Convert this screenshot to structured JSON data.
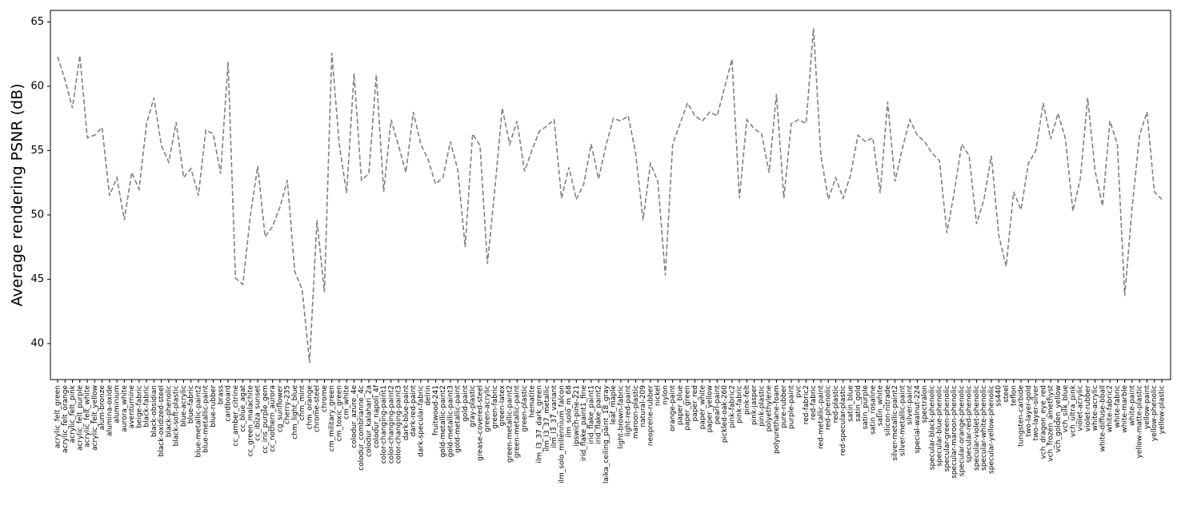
{
  "chart_data": {
    "type": "line",
    "y_label": "Average rendering PSNR (dB)",
    "categories": [
      "acrylic_felt_green",
      "acrylic_felt_orange",
      "acrylic_felt_pink",
      "acrylic_felt_purple",
      "acrylic_felt_white",
      "acrylic_felt_yellow",
      "alum-bronze",
      "alumina-oxide",
      "aluminium",
      "aurora_white",
      "aventurnine",
      "beige-fabric",
      "black-fabric",
      "black-obsidian",
      "black-oxidized-steel",
      "black-phenolic",
      "black-soft-plastic",
      "blue-acrylic",
      "blue-fabric",
      "blue-metallic-paint2",
      "blue-metallic-paint",
      "blue-rubber",
      "brass",
      "cardboard",
      "cc_amber_citrine",
      "cc_blue_agat",
      "cc_green_malachite",
      "cc_ibiza_sunset",
      "cc_iris_purple_gem",
      "cc_nothern_aurora",
      "cg_sunflower",
      "cherry-235",
      "chm_light_blue",
      "chm_mint",
      "chm_orange",
      "chrome-steel",
      "chrome",
      "cm_military_green",
      "cm_toxic_green",
      "cm_white",
      "colodur_azure_4e",
      "colodur_combrianne_4c",
      "colodur_kalahari_2a",
      "colodur_napoli_4f",
      "color-changing-paint1",
      "color-changing-paint2",
      "color-changing-paint3",
      "dark-blue-paint",
      "dark-red-paint",
      "dark-specular-fabric",
      "delrin",
      "fruitwood-241",
      "gold-metallic-paint2",
      "gold-metallic-paint3",
      "gold-metallic-paint",
      "gold-paint",
      "gray-plastic",
      "grease-covered-steel",
      "green-acrylic",
      "green-fabric",
      "green-latex",
      "green-metallic-paint2",
      "green-metallic-paint",
      "green-plastic",
      "hematite",
      "ilm_l3_37_dark_green",
      "ilm_l3_37_metallic",
      "ilm_l3_37_variant",
      "ilm_solo_millennium_falcon",
      "ilm_solo_m_68",
      "ipswich-pine-221",
      "irid_flake_paint1_fine",
      "irid_flake_paint1",
      "irid_flake_paint2",
      "laika_ceiling_paint_18_gray",
      "leaf_maple",
      "light-brown-fabric",
      "light-red-paint",
      "maroon-plastic",
      "natural-209",
      "neoprene-rubber",
      "nickel",
      "nylon",
      "orange-paint",
      "paper_blue",
      "paper_green",
      "paper_red",
      "paper_white",
      "paper_yellow",
      "pearl-paint",
      "pickled-oak-260",
      "pink-fabric2",
      "pink-fabric",
      "pink-felt",
      "pink-jasper",
      "pink-plastic",
      "polyethylene",
      "polyurethane-foam",
      "pure-rubber",
      "purple-paint",
      "pvc",
      "red-fabric2",
      "red-fabric",
      "red-metallic-paint",
      "red-phenolic",
      "red-plastic",
      "red-specular-plastic",
      "satin_blue",
      "satin_gold",
      "satin_purple",
      "satin_rosaline",
      "satin_white",
      "silicon-nitrade",
      "silver-metallic-paint2",
      "silver-metallic-paint",
      "silver-paint",
      "special-walnut-224",
      "spectralon",
      "specular-black-phenolic",
      "specular-blue-phenolic",
      "specular-green-phenolic",
      "specular-maroon-phenolic",
      "specular-orange-phenolic",
      "specular-red-phenolic",
      "specular-violet-phenolic",
      "specular-white-phenolic",
      "specular-yellow-phenolic",
      "ss440",
      "steel",
      "teflon",
      "tungsten-carbide",
      "two-layer-gold",
      "two-layer-silver",
      "vch_dragon_eye_red",
      "vch_frozen_amethyst",
      "vch_golden_yellow",
      "vch_silk_blue",
      "vch_ultra_pink",
      "violet-acrylic",
      "violet-rubber",
      "white-acrylic",
      "white-diffuse-bball",
      "white-fabric2",
      "white-fabric",
      "white-marble",
      "white-paint",
      "yellow-matte-plastic",
      "yellow-paint",
      "yellow-phenolic",
      "yellow-plastic"
    ],
    "values": [
      62.3,
      60.5,
      58.3,
      62.4,
      56.0,
      56.2,
      56.8,
      51.5,
      52.9,
      49.6,
      53.3,
      52.0,
      57.1,
      59.1,
      55.4,
      54.1,
      57.2,
      52.9,
      53.6,
      51.5,
      56.6,
      56.3,
      53.2,
      61.9,
      45.1,
      44.6,
      49.9,
      53.8,
      48.3,
      49.1,
      50.6,
      52.7,
      45.6,
      44.2,
      38.5,
      49.6,
      44.0,
      62.6,
      55.5,
      51.7,
      61.0,
      52.7,
      53.2,
      60.9,
      51.8,
      57.4,
      55.4,
      53.3,
      58.0,
      55.5,
      54.3,
      52.4,
      52.9,
      55.7,
      53.5,
      47.5,
      56.3,
      55.4,
      46.2,
      52.0,
      58.3,
      55.5,
      57.3,
      53.4,
      55.0,
      56.5,
      56.9,
      57.4,
      51.3,
      53.7,
      51.2,
      52.4,
      55.5,
      52.8,
      55.4,
      57.5,
      57.3,
      57.7,
      54.8,
      49.6,
      54.0,
      52.6,
      45.3,
      55.5,
      57.1,
      58.7,
      57.7,
      57.3,
      58.0,
      57.7,
      59.9,
      62.1,
      51.3,
      57.4,
      56.7,
      56.3,
      53.3,
      59.4,
      51.3,
      57.1,
      57.4,
      57.1,
      64.5,
      54.6,
      51.2,
      52.9,
      51.3,
      53.1,
      56.2,
      55.7,
      56.0,
      51.7,
      58.8,
      52.6,
      55.2,
      57.4,
      56.2,
      55.7,
      54.8,
      54.2,
      48.6,
      51.8,
      55.5,
      54.6,
      49.3,
      51.2,
      54.6,
      48.4,
      46.0,
      51.8,
      50.4,
      54.0,
      55.0,
      58.7,
      55.9,
      57.9,
      55.9,
      50.3,
      52.8,
      59.1,
      53.4,
      50.7,
      57.3,
      55.5,
      43.7,
      50.6,
      56.2,
      58.0,
      51.8,
      51.2
    ],
    "color": "#808080",
    "line_style": "dashed",
    "ylim": [
      37.2,
      65.9
    ],
    "yticks": [
      40,
      45,
      50,
      55,
      60,
      65
    ],
    "grid": false
  }
}
